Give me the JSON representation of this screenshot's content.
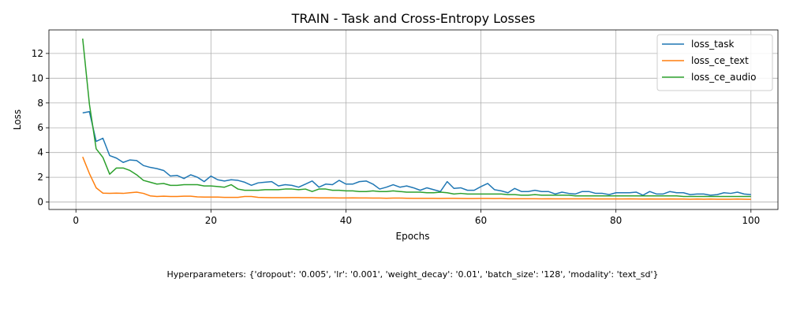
{
  "chart_data": {
    "type": "line",
    "title": "TRAIN - Task and Cross-Entropy Losses",
    "xlabel": "Epochs",
    "ylabel": "Loss",
    "xlim": [
      -4,
      104
    ],
    "ylim": [
      -0.6,
      13.9
    ],
    "xticks": [
      0,
      20,
      40,
      60,
      80,
      100
    ],
    "yticks": [
      0,
      2,
      4,
      6,
      8,
      10,
      12
    ],
    "grid": true,
    "legend_position": "top-right",
    "x": [
      1,
      2,
      3,
      4,
      5,
      6,
      7,
      8,
      9,
      10,
      11,
      12,
      13,
      14,
      15,
      16,
      17,
      18,
      19,
      20,
      21,
      22,
      23,
      24,
      25,
      26,
      27,
      28,
      29,
      30,
      31,
      32,
      33,
      34,
      35,
      36,
      37,
      38,
      39,
      40,
      41,
      42,
      43,
      44,
      45,
      46,
      47,
      48,
      49,
      50,
      51,
      52,
      53,
      54,
      55,
      56,
      57,
      58,
      59,
      60,
      61,
      62,
      63,
      64,
      65,
      66,
      67,
      68,
      69,
      70,
      71,
      72,
      73,
      74,
      75,
      76,
      77,
      78,
      79,
      80,
      81,
      82,
      83,
      84,
      85,
      86,
      87,
      88,
      89,
      90,
      91,
      92,
      93,
      94,
      95,
      96,
      97,
      98,
      99,
      100
    ],
    "series": [
      {
        "name": "loss_task",
        "color": "#1f77b4",
        "values": [
          7.2,
          7.3,
          4.9,
          5.15,
          3.75,
          3.55,
          3.2,
          3.4,
          3.35,
          2.95,
          2.8,
          2.7,
          2.55,
          2.1,
          2.15,
          1.9,
          2.2,
          2.0,
          1.65,
          2.1,
          1.8,
          1.7,
          1.8,
          1.75,
          1.6,
          1.35,
          1.55,
          1.6,
          1.65,
          1.3,
          1.4,
          1.35,
          1.2,
          1.45,
          1.7,
          1.2,
          1.45,
          1.4,
          1.75,
          1.45,
          1.45,
          1.65,
          1.7,
          1.45,
          1.05,
          1.2,
          1.4,
          1.2,
          1.3,
          1.15,
          0.95,
          1.15,
          1.0,
          0.85,
          1.65,
          1.1,
          1.15,
          0.95,
          0.95,
          1.25,
          1.5,
          1.0,
          0.9,
          0.75,
          1.1,
          0.85,
          0.85,
          0.95,
          0.85,
          0.85,
          0.65,
          0.8,
          0.7,
          0.65,
          0.85,
          0.85,
          0.7,
          0.7,
          0.6,
          0.75,
          0.75,
          0.75,
          0.8,
          0.55,
          0.85,
          0.65,
          0.65,
          0.85,
          0.75,
          0.75,
          0.6,
          0.65,
          0.65,
          0.55,
          0.6,
          0.75,
          0.7,
          0.8,
          0.65,
          0.6
        ]
      },
      {
        "name": "loss_ce_text",
        "color": "#ff7f0e",
        "values": [
          3.65,
          2.3,
          1.15,
          0.72,
          0.7,
          0.72,
          0.7,
          0.75,
          0.8,
          0.7,
          0.5,
          0.45,
          0.47,
          0.45,
          0.45,
          0.47,
          0.47,
          0.42,
          0.4,
          0.4,
          0.4,
          0.38,
          0.38,
          0.38,
          0.45,
          0.45,
          0.38,
          0.36,
          0.35,
          0.35,
          0.35,
          0.36,
          0.36,
          0.35,
          0.35,
          0.34,
          0.34,
          0.34,
          0.33,
          0.33,
          0.34,
          0.33,
          0.33,
          0.32,
          0.32,
          0.31,
          0.32,
          0.32,
          0.31,
          0.3,
          0.3,
          0.3,
          0.3,
          0.29,
          0.3,
          0.3,
          0.29,
          0.28,
          0.28,
          0.29,
          0.29,
          0.28,
          0.29,
          0.27,
          0.27,
          0.27,
          0.27,
          0.27,
          0.26,
          0.27,
          0.26,
          0.26,
          0.26,
          0.26,
          0.26,
          0.27,
          0.25,
          0.25,
          0.25,
          0.25,
          0.25,
          0.26,
          0.25,
          0.24,
          0.25,
          0.24,
          0.24,
          0.25,
          0.24,
          0.24,
          0.23,
          0.24,
          0.23,
          0.24,
          0.23,
          0.23,
          0.23,
          0.24,
          0.23,
          0.22
        ]
      },
      {
        "name": "loss_ce_audio",
        "color": "#2ca02c",
        "values": [
          13.2,
          7.9,
          4.3,
          3.6,
          2.25,
          2.75,
          2.75,
          2.55,
          2.2,
          1.75,
          1.6,
          1.45,
          1.5,
          1.35,
          1.35,
          1.4,
          1.4,
          1.4,
          1.3,
          1.3,
          1.25,
          1.2,
          1.4,
          1.05,
          0.95,
          0.95,
          0.95,
          1.0,
          1.0,
          1.0,
          1.05,
          1.05,
          1.0,
          1.05,
          0.85,
          1.05,
          1.05,
          0.95,
          0.95,
          0.9,
          0.9,
          0.85,
          0.85,
          0.9,
          0.85,
          0.85,
          0.9,
          0.85,
          0.8,
          0.8,
          0.8,
          0.75,
          0.75,
          0.8,
          0.75,
          0.65,
          0.7,
          0.65,
          0.65,
          0.65,
          0.65,
          0.65,
          0.65,
          0.6,
          0.6,
          0.55,
          0.55,
          0.6,
          0.55,
          0.55,
          0.55,
          0.55,
          0.55,
          0.5,
          0.5,
          0.5,
          0.5,
          0.5,
          0.5,
          0.5,
          0.5,
          0.5,
          0.5,
          0.5,
          0.5,
          0.5,
          0.5,
          0.5,
          0.5,
          0.45,
          0.45,
          0.45,
          0.45,
          0.45,
          0.45,
          0.45,
          0.45,
          0.45,
          0.45,
          0.45
        ]
      }
    ]
  },
  "caption": "Hyperparameters: {'dropout': '0.005', 'lr': '0.001', 'weight_decay': '0.01', 'batch_size': '128', 'modality': 'text_sd'}"
}
